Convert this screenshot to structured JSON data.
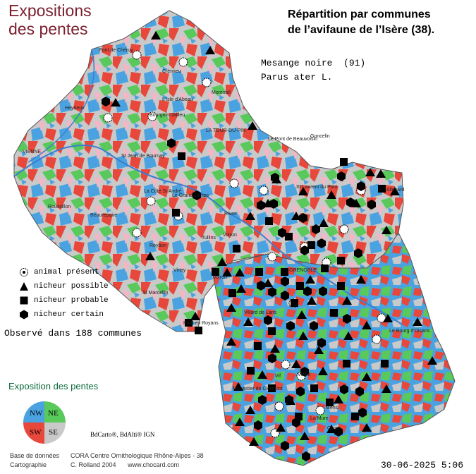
{
  "title_left": {
    "line1": "Expositions",
    "line2": "des pentes"
  },
  "title_right": {
    "line1": "Répartition par communes",
    "line2": "de l’avifaune de l’Isère (38)."
  },
  "species": {
    "common": "Mesange noire  (91)",
    "latin": "Parus ater L."
  },
  "legend": [
    {
      "icon": "dotted-circle-icon",
      "label": "animal présent"
    },
    {
      "icon": "triangle-icon",
      "label": "nicheur possible"
    },
    {
      "icon": "square-icon",
      "label": "nicheur probable"
    },
    {
      "icon": "hexagon-icon",
      "label": "nicheur certain"
    }
  ],
  "observed": "Observé dans 188 communes",
  "exposure": {
    "title": "Exposition des pentes",
    "quadrants": [
      {
        "label": "NW",
        "color": "#4aa3e0"
      },
      {
        "label": "NE",
        "color": "#58c95a"
      },
      {
        "label": "SW",
        "color": "#e8473c"
      },
      {
        "label": "SE",
        "color": "#c9c9c9"
      }
    ]
  },
  "credit_ign": "BdCarto®, BdAlti® IGN",
  "footer": {
    "label1": "Base de données",
    "value1": "CORA Centre Ornithologique Rhône-Alpes - 38",
    "label2": "Cartographie",
    "value2": "C. Rolland 2004",
    "url": "www.chocard.com"
  },
  "date": "30-06-2025 5:06",
  "towns": [
    "Pont de Chéruy",
    "Crémieu",
    "Morestel",
    "Heyrieux",
    "L'Isle d'Abeau",
    "Bourgoin-Jallieu",
    "LA TOUR-DU-PIN",
    "Le Pont de Beauvoisin",
    "VIENNE",
    "St Jean de Bournay",
    "Roussillon",
    "La Côte St André",
    "Le Grand Lemps",
    "Rives",
    "Beaurepaire",
    "Roybon",
    "Voiron",
    "Goncelin",
    "St Laurent du Pont",
    "Allevard",
    "Voiron",
    "GRENOBLE",
    "Vinay",
    "St Marcellin",
    "Pont en Royans",
    "Villard de Lans",
    "Vizille",
    "Le Bourg d'Oisans",
    "Monestier de Clermont",
    "Mens",
    "Corps",
    "La Mure",
    "Tullins",
    "Vif"
  ],
  "colors": {
    "title_left": "#7a1e2c",
    "map_nw": "#4aa3e0",
    "map_ne": "#58c95a",
    "map_sw": "#e8473c",
    "map_se": "#c9c9c9",
    "river": "#3a7fd0"
  }
}
